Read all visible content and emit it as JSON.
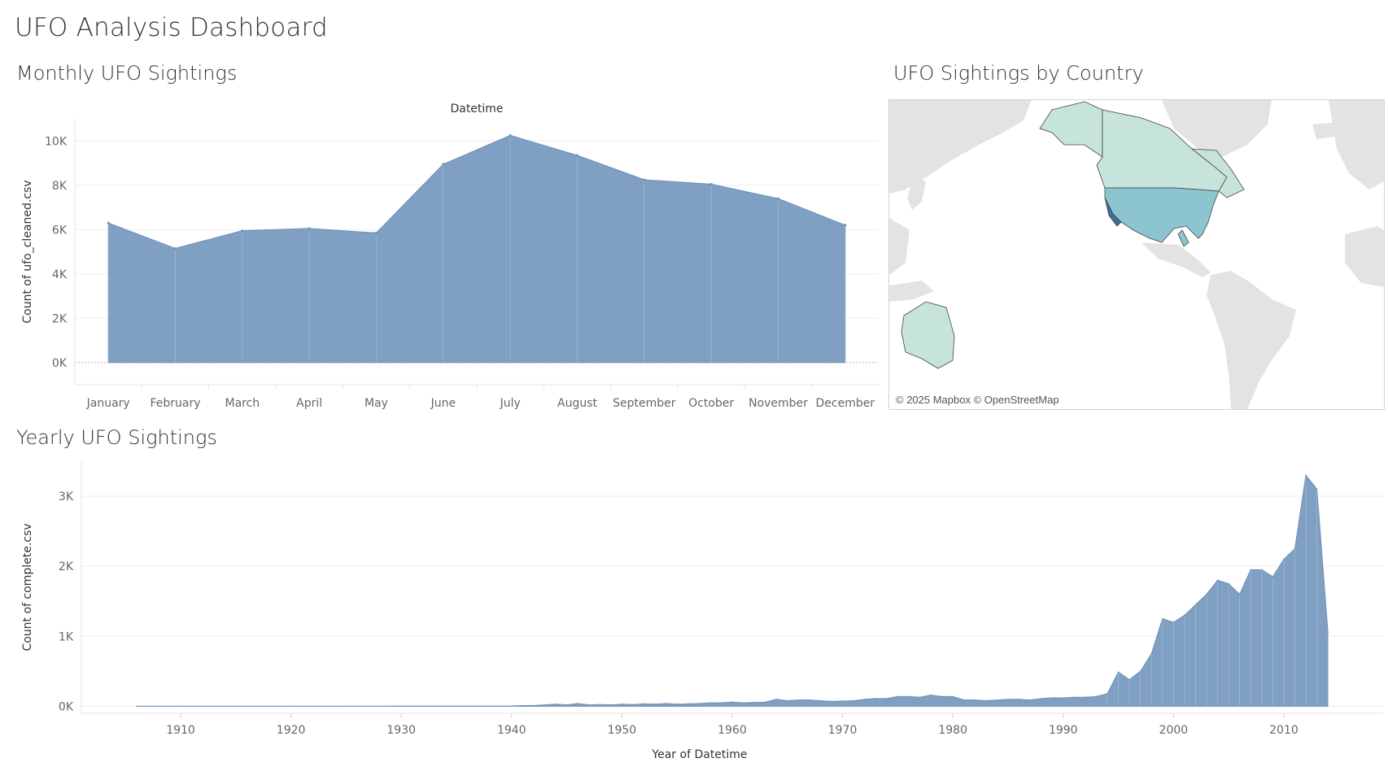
{
  "dashboard": {
    "title": "UFO Analysis Dashboard"
  },
  "sheets": {
    "monthly": {
      "title": "Monthly UFO Sightings"
    },
    "country": {
      "title": "UFO Sightings by Country",
      "attribution": "© 2025 Mapbox © OpenStreetMap"
    },
    "yearly": {
      "title": "Yearly UFO Sightings"
    }
  },
  "colors": {
    "area": "#7f9fc3",
    "map_light": "#c6e4dc",
    "map_mid": "#8cc4cf",
    "map_dark": "#3b6f96",
    "land": "#e3e3e3"
  },
  "chart_data": [
    {
      "type": "area",
      "title": "Monthly UFO Sightings",
      "xlabel": "Datetime",
      "xlabel_position": "top",
      "ylabel": "Count of ufo_cleaned.csv",
      "categories": [
        "January",
        "February",
        "March",
        "April",
        "May",
        "June",
        "July",
        "August",
        "September",
        "October",
        "November",
        "December"
      ],
      "values": [
        6300,
        5150,
        5950,
        6050,
        5850,
        8950,
        10250,
        9350,
        8250,
        8050,
        7400,
        6200
      ],
      "ylim": [
        -1000,
        11000
      ],
      "yticks": [
        0,
        2000,
        4000,
        6000,
        8000,
        10000
      ],
      "ytick_labels": [
        "0K",
        "2K",
        "4K",
        "6K",
        "8K",
        "10K"
      ],
      "grid": true
    },
    {
      "type": "area",
      "title": "Yearly UFO Sightings",
      "xlabel": "Year of Datetime",
      "ylabel": "Count of complete.csv",
      "x": [
        1906,
        1910,
        1920,
        1925,
        1930,
        1935,
        1940,
        1941,
        1942,
        1943,
        1944,
        1945,
        1946,
        1947,
        1948,
        1949,
        1950,
        1951,
        1952,
        1953,
        1954,
        1955,
        1956,
        1957,
        1958,
        1959,
        1960,
        1961,
        1962,
        1963,
        1964,
        1965,
        1966,
        1967,
        1968,
        1969,
        1970,
        1971,
        1972,
        1973,
        1974,
        1975,
        1976,
        1977,
        1978,
        1979,
        1980,
        1981,
        1982,
        1983,
        1984,
        1985,
        1986,
        1987,
        1988,
        1989,
        1990,
        1991,
        1992,
        1993,
        1994,
        1995,
        1996,
        1997,
        1998,
        1999,
        2000,
        2001,
        2002,
        2003,
        2004,
        2005,
        2006,
        2007,
        2008,
        2009,
        2010,
        2011,
        2012,
        2013,
        2014
      ],
      "values": [
        2,
        2,
        2,
        2,
        3,
        3,
        5,
        10,
        10,
        20,
        30,
        20,
        40,
        20,
        25,
        20,
        30,
        25,
        35,
        30,
        40,
        30,
        35,
        40,
        50,
        50,
        60,
        50,
        55,
        60,
        100,
        80,
        90,
        90,
        80,
        70,
        75,
        80,
        100,
        110,
        110,
        140,
        140,
        130,
        160,
        140,
        140,
        90,
        90,
        80,
        90,
        100,
        100,
        90,
        110,
        120,
        120,
        130,
        130,
        140,
        180,
        490,
        380,
        500,
        750,
        1250,
        1200,
        1300,
        1450,
        1600,
        1800,
        1750,
        1600,
        1950,
        1950,
        1850,
        2100,
        2250,
        3300,
        3100,
        1050
      ],
      "ylim": [
        -100,
        3500
      ],
      "yticks": [
        0,
        1000,
        2000,
        3000
      ],
      "ytick_labels": [
        "0K",
        "1K",
        "2K",
        "3K"
      ],
      "xlim": [
        1901,
        2019
      ],
      "xticks": [
        1910,
        1920,
        1930,
        1940,
        1950,
        1960,
        1970,
        1980,
        1990,
        2000,
        2010
      ],
      "grid": true
    }
  ]
}
